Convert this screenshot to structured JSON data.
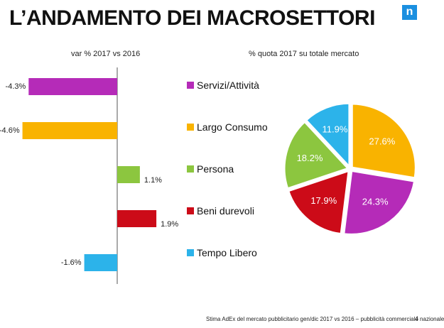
{
  "header": {
    "title": "L’ANDAMENTO DEI MACROSETTORI",
    "logo_letter": "n"
  },
  "colors": {
    "brand": "#1a8fe0"
  },
  "footer": {
    "note": "Stima AdEx del mercato pubblicitario gen/dic 2017 vs 2016 – pubblicità commerciale nazionale",
    "page_number": "4"
  },
  "chart_data": [
    {
      "type": "bar",
      "orientation": "horizontal",
      "title": "var % 2017 vs 2016",
      "categories": [
        "Servizi/Attività",
        "Largo Consumo",
        "Persona",
        "Beni durevoli",
        "Tempo Libero"
      ],
      "values": [
        -4.3,
        -4.6,
        1.1,
        1.9,
        -1.6
      ],
      "data_labels": [
        "-4.3%",
        "-4.6%",
        "1.1%",
        "1.9%",
        "-1.6%"
      ],
      "colors": [
        "#b52bb8",
        "#f9b300",
        "#8cc63f",
        "#cc0b18",
        "#2cb3ea"
      ]
    },
    {
      "type": "pie",
      "title": "% quota 2017 su totale mercato",
      "labels": [
        "Largo Consumo",
        "Servizi/Attività",
        "Beni durevoli",
        "Persona",
        "Tempo Libero"
      ],
      "values": [
        27.6,
        24.3,
        17.9,
        18.2,
        11.9
      ],
      "data_labels": [
        "27.6%",
        "24.3%",
        "17.9%",
        "18.2%",
        "11.9%"
      ],
      "colors": [
        "#f9b300",
        "#b52bb8",
        "#cc0b18",
        "#8cc63f",
        "#2cb3ea"
      ]
    }
  ],
  "legend": [
    {
      "label": "Servizi/Attività",
      "color": "#b52bb8"
    },
    {
      "label": "Largo Consumo",
      "color": "#f9b300"
    },
    {
      "label": "Persona",
      "color": "#8cc63f"
    },
    {
      "label": "Beni durevoli",
      "color": "#cc0b18"
    },
    {
      "label": "Tempo Libero",
      "color": "#2cb3ea"
    }
  ]
}
